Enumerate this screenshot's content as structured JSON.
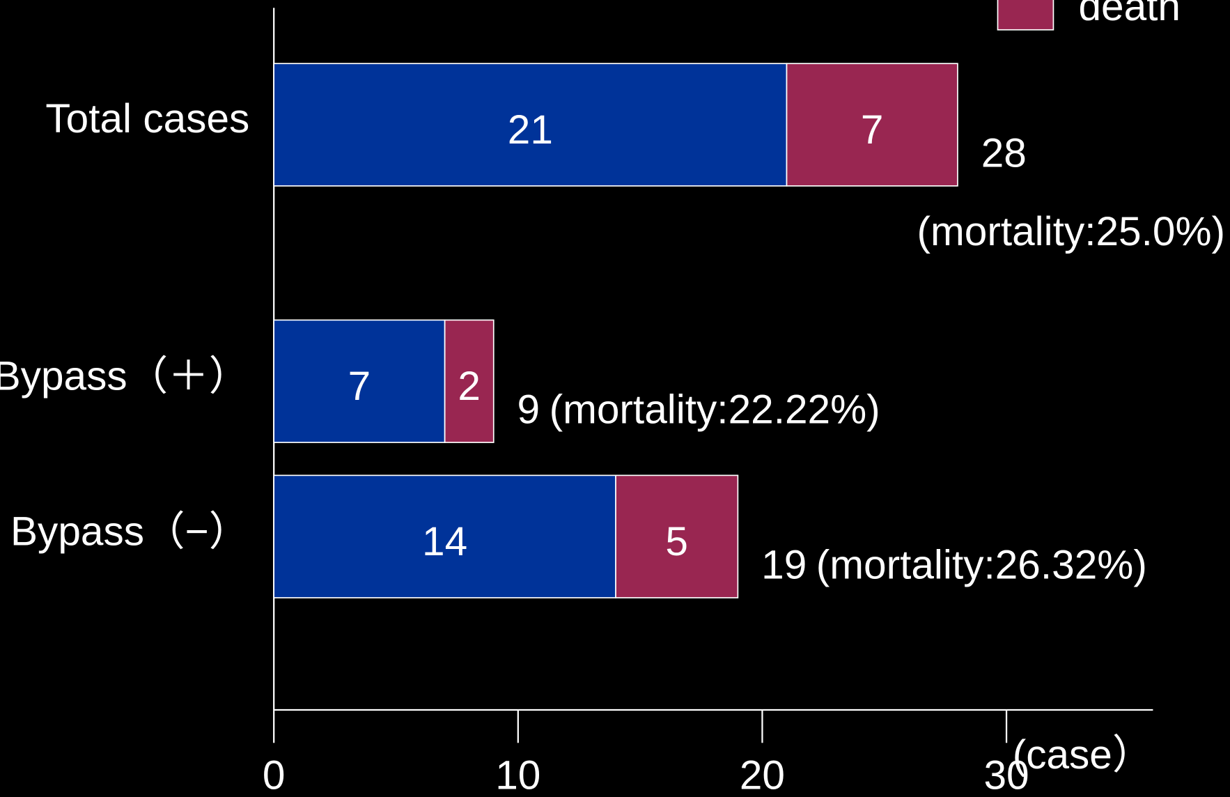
{
  "chart_data": {
    "type": "bar",
    "orientation": "horizontal",
    "stacked": true,
    "categories": [
      "Total cases",
      "Bypass（＋）",
      "Bypass（−）"
    ],
    "series": [
      {
        "color": "#003399",
        "values": [
          21,
          7,
          14
        ]
      },
      {
        "name": "death",
        "color": "#992651",
        "values": [
          7,
          2,
          5
        ]
      }
    ],
    "totals": [
      28,
      9,
      19
    ],
    "annotations": [
      "(mortality:25.0%)",
      "(mortality:22.22%)",
      "(mortality:26.32%)"
    ],
    "xlabel": "(case）",
    "xlim": [
      0,
      36
    ],
    "xticks": [
      0,
      10,
      20,
      30
    ]
  }
}
